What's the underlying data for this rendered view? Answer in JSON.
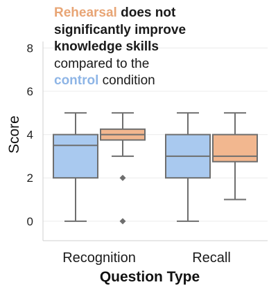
{
  "chart_data": {
    "type": "box",
    "title_line1_highlight": "Rehearsal",
    "title_line1_rest": " does not",
    "title_line2": "significantly improve",
    "title_line3": "knowledge skills",
    "title_line4": "compared to the",
    "title_line5_highlight": "control",
    "title_line5_rest": " condition",
    "xlabel": "Question Type",
    "ylabel": "Score",
    "ylim": [
      -0.9,
      8.3
    ],
    "yticks": [
      0,
      2,
      4,
      6,
      8
    ],
    "grid": true,
    "categories": [
      "Recognition",
      "Recall"
    ],
    "series": [
      {
        "color": "#a9c9ef",
        "boxes": [
          {
            "whisker_low": 0,
            "q1": 2,
            "median": 3.5,
            "q3": 4,
            "whisker_high": 5,
            "outliers": []
          },
          {
            "whisker_low": 0,
            "q1": 2,
            "median": 3,
            "q3": 4,
            "whisker_high": 5,
            "outliers": []
          }
        ]
      },
      {
        "color": "#f2b78f",
        "boxes": [
          {
            "whisker_low": 3,
            "q1": 3.75,
            "median": 4,
            "q3": 4.25,
            "whisker_high": 5,
            "outliers": [
              2,
              0
            ]
          },
          {
            "whisker_low": 1,
            "q1": 2.75,
            "median": 3,
            "q3": 4,
            "whisker_high": 5,
            "outliers": []
          }
        ]
      }
    ],
    "colors": {
      "control": "#a9c9ef",
      "rehearsal": "#f2b78f",
      "control_text": "#8eb5e6",
      "rehearsal_text": "#e8a575",
      "line": "#6e6e6e",
      "grid": "#ececec"
    }
  }
}
